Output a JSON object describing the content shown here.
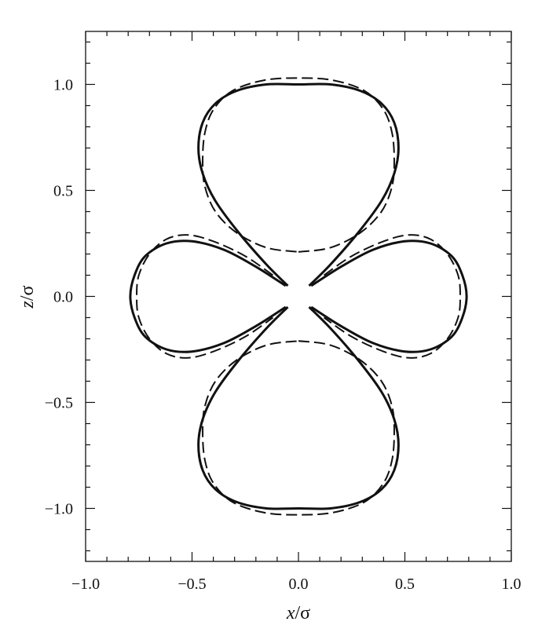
{
  "chart_data": {
    "type": "line",
    "title": "",
    "xlabel": "x/σ",
    "ylabel": "z/σ",
    "xlim": [
      -1.0,
      1.0
    ],
    "ylim": [
      -1.25,
      1.25
    ],
    "x_ticks": [
      "−1.0",
      "−0.5",
      "0.0",
      "0.5",
      "1.0"
    ],
    "y_ticks": [
      "−1.0",
      "−0.5",
      "0.0",
      "0.5",
      "1.0"
    ],
    "grid": false,
    "legend": "none",
    "series": [
      {
        "style": "solid",
        "segments": [
          {
            "lobe": "upper",
            "x": [
              0.05,
              0.15,
              0.28,
              0.39,
              0.45,
              0.47,
              0.45,
              0.39,
              0.29,
              0.15,
              0.0,
              -0.15,
              -0.29,
              -0.39,
              -0.45,
              -0.47,
              -0.45,
              -0.39,
              -0.28,
              -0.15,
              -0.05
            ],
            "y": [
              0.05,
              0.15,
              0.3,
              0.45,
              0.58,
              0.7,
              0.82,
              0.91,
              0.97,
              1.0,
              1.0,
              1.0,
              0.97,
              0.91,
              0.82,
              0.7,
              0.58,
              0.45,
              0.3,
              0.15,
              0.05
            ]
          },
          {
            "lobe": "lower",
            "x": [
              0.05,
              0.15,
              0.28,
              0.39,
              0.45,
              0.47,
              0.45,
              0.39,
              0.29,
              0.15,
              0.0,
              -0.15,
              -0.29,
              -0.39,
              -0.45,
              -0.47,
              -0.45,
              -0.39,
              -0.28,
              -0.15,
              -0.05
            ],
            "y": [
              -0.05,
              -0.15,
              -0.3,
              -0.45,
              -0.58,
              -0.7,
              -0.82,
              -0.91,
              -0.97,
              -1.0,
              -1.0,
              -1.0,
              -0.97,
              -0.91,
              -0.82,
              -0.7,
              -0.58,
              -0.45,
              -0.3,
              -0.15,
              -0.05
            ]
          },
          {
            "lobe": "right",
            "x": [
              0.06,
              0.2,
              0.35,
              0.5,
              0.62,
              0.72,
              0.77,
              0.79,
              0.77,
              0.72,
              0.62,
              0.5,
              0.35,
              0.2,
              0.06
            ],
            "y": [
              0.05,
              0.14,
              0.22,
              0.26,
              0.25,
              0.19,
              0.1,
              0.0,
              -0.1,
              -0.19,
              -0.25,
              -0.26,
              -0.22,
              -0.14,
              -0.05
            ]
          },
          {
            "lobe": "left",
            "x": [
              -0.06,
              -0.2,
              -0.35,
              -0.5,
              -0.62,
              -0.72,
              -0.77,
              -0.79,
              -0.77,
              -0.72,
              -0.62,
              -0.5,
              -0.35,
              -0.2,
              -0.06
            ],
            "y": [
              0.05,
              0.14,
              0.22,
              0.26,
              0.25,
              0.19,
              0.1,
              0.0,
              -0.1,
              -0.19,
              -0.25,
              -0.26,
              -0.22,
              -0.14,
              -0.05
            ]
          }
        ]
      },
      {
        "style": "dashed",
        "segments": [
          {
            "lobe": "upper",
            "x": [
              0.0,
              0.15,
              0.29,
              0.39,
              0.44,
              0.45,
              0.44,
              0.4,
              0.31,
              0.16,
              0.0,
              -0.16,
              -0.31,
              -0.4,
              -0.44,
              -0.45,
              -0.44,
              -0.39,
              -0.29,
              -0.15,
              0.0
            ],
            "y": [
              0.21,
              0.23,
              0.3,
              0.4,
              0.52,
              0.64,
              0.77,
              0.88,
              0.97,
              1.02,
              1.03,
              1.02,
              0.97,
              0.88,
              0.77,
              0.64,
              0.52,
              0.4,
              0.3,
              0.23,
              0.21
            ]
          },
          {
            "lobe": "lower",
            "x": [
              0.0,
              0.15,
              0.29,
              0.39,
              0.44,
              0.45,
              0.44,
              0.4,
              0.31,
              0.16,
              0.0,
              -0.16,
              -0.31,
              -0.4,
              -0.44,
              -0.45,
              -0.44,
              -0.39,
              -0.29,
              -0.15,
              0.0
            ],
            "y": [
              -0.21,
              -0.23,
              -0.3,
              -0.4,
              -0.52,
              -0.64,
              -0.77,
              -0.88,
              -0.97,
              -1.02,
              -1.03,
              -1.02,
              -0.97,
              -0.88,
              -0.77,
              -0.64,
              -0.52,
              -0.4,
              -0.3,
              -0.23,
              -0.21
            ]
          },
          {
            "lobe": "right",
            "x": [
              0.12,
              0.25,
              0.4,
              0.52,
              0.62,
              0.7,
              0.75,
              0.76,
              0.75,
              0.7,
              0.62,
              0.52,
              0.4,
              0.25,
              0.12
            ],
            "y": [
              0.1,
              0.19,
              0.26,
              0.29,
              0.27,
              0.2,
              0.1,
              0.0,
              -0.1,
              -0.2,
              -0.27,
              -0.29,
              -0.26,
              -0.19,
              -0.1
            ]
          },
          {
            "lobe": "left",
            "x": [
              -0.12,
              -0.25,
              -0.4,
              -0.52,
              -0.62,
              -0.7,
              -0.75,
              -0.76,
              -0.75,
              -0.7,
              -0.62,
              -0.52,
              -0.4,
              -0.25,
              -0.12
            ],
            "y": [
              0.1,
              0.19,
              0.26,
              0.29,
              0.27,
              0.2,
              0.1,
              0.0,
              -0.1,
              -0.2,
              -0.27,
              -0.29,
              -0.26,
              -0.19,
              -0.1
            ]
          }
        ]
      }
    ]
  }
}
